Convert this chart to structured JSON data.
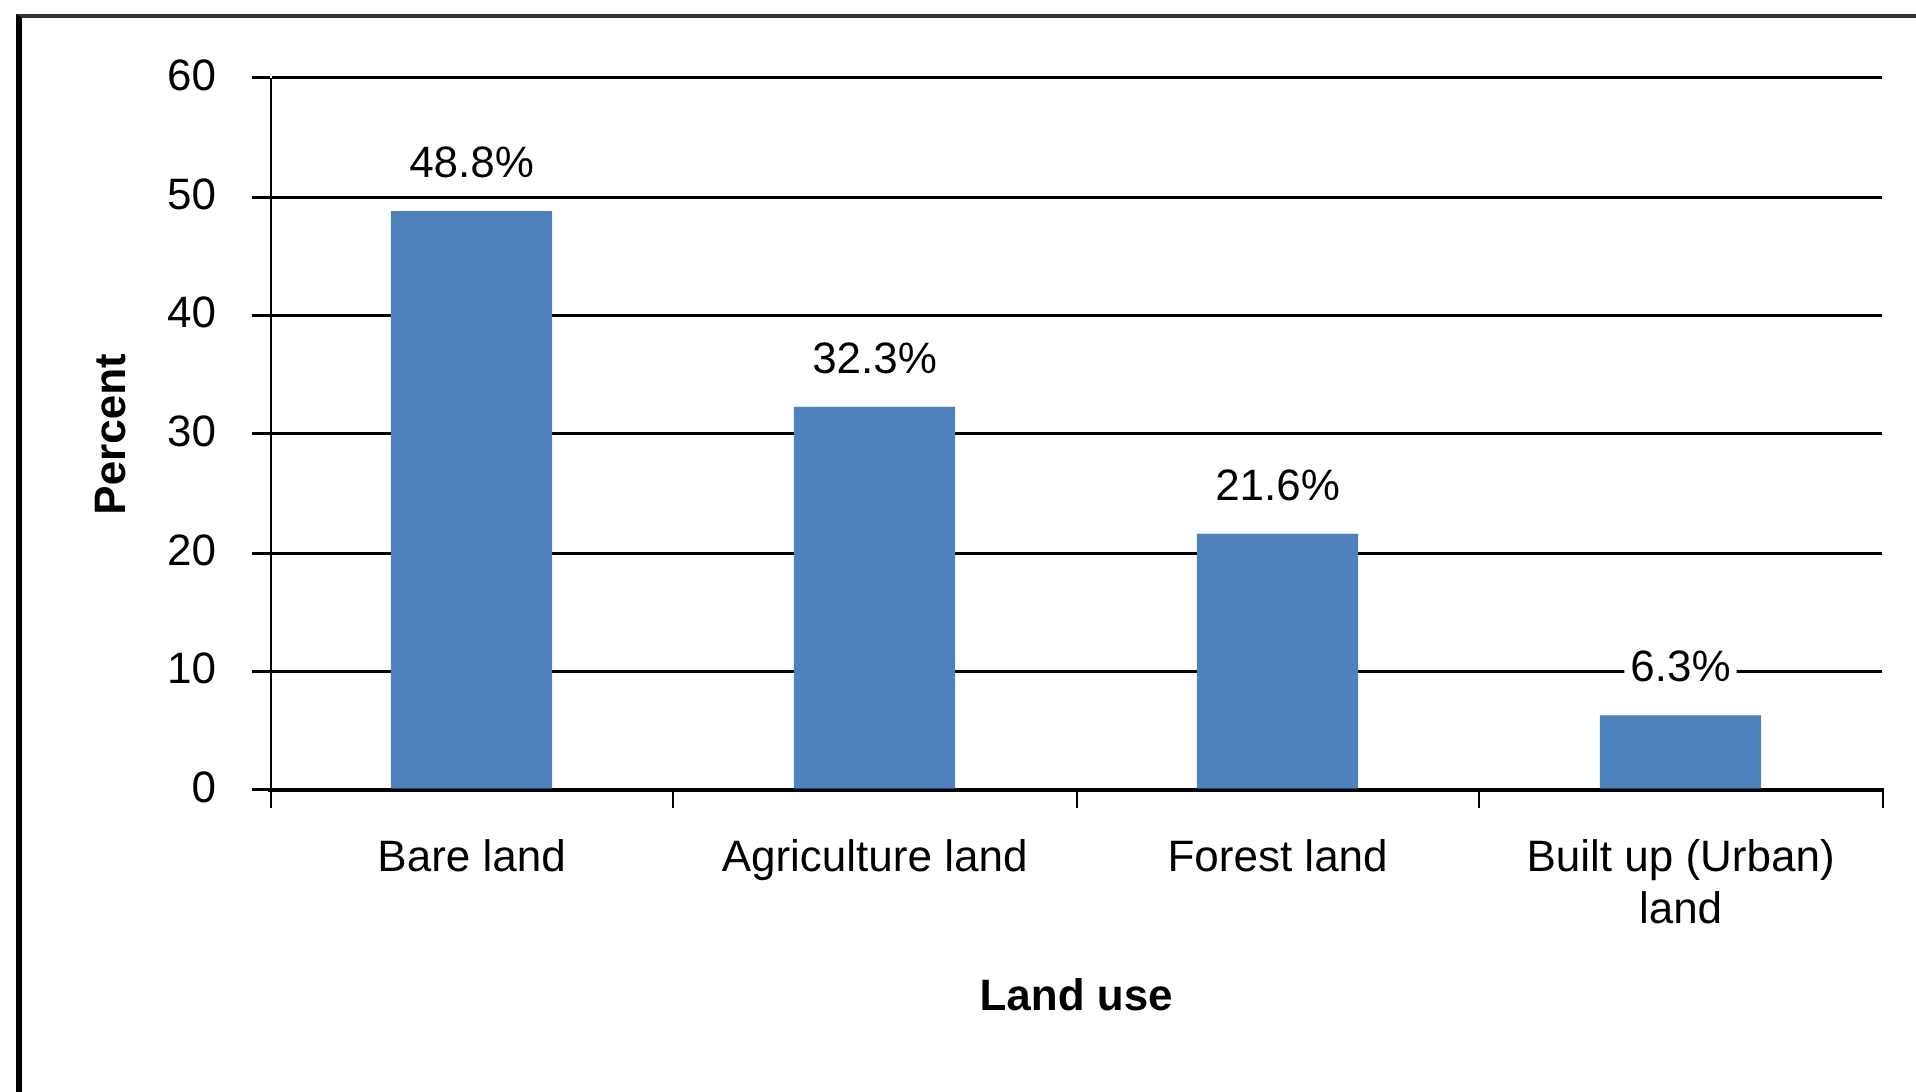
{
  "chart_data": {
    "type": "bar",
    "xlabel": "Land use",
    "ylabel": "Percent",
    "categories": [
      "Bare land",
      "Agriculture land",
      "Forest land",
      "Built up (Urban) land"
    ],
    "values": [
      48.8,
      32.3,
      21.6,
      6.3
    ],
    "color": "#4f81bd",
    "value_labels": [
      "48.8%",
      "32.3%",
      "21.6%",
      "6.3%"
    ],
    "ylim": [
      0,
      60
    ],
    "yticks": [
      0,
      10,
      20,
      30,
      40,
      50,
      60
    ],
    "grid": "y"
  }
}
